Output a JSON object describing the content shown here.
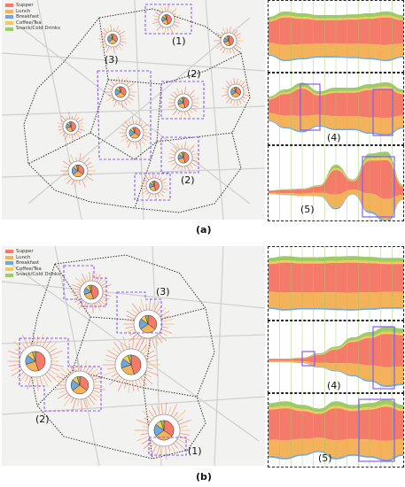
{
  "legend": {
    "items": [
      {
        "label": "Supper",
        "color": "#f47a6a"
      },
      {
        "label": "Lunch",
        "color": "#f4b25a"
      },
      {
        "label": "Breakfast",
        "color": "#6fa8dc"
      },
      {
        "label": "Coffee/Tea",
        "color": "#f6c95a"
      },
      {
        "label": "Snack/Cold Drinks",
        "color": "#9ccc65"
      }
    ]
  },
  "figure_a": {
    "caption": "(a)",
    "map_labels": [
      "(1)",
      "(2)",
      "(3)",
      "(2)"
    ],
    "stream_labels": [
      "(4)",
      "(5)"
    ]
  },
  "figure_b": {
    "caption": "(b)",
    "map_labels": [
      "(3)",
      "(2)",
      "(1)"
    ],
    "stream_labels": [
      "(4)",
      "(5)"
    ]
  },
  "colors": {
    "highlight": "#8a5cf0",
    "supper": "#f47a6a",
    "lunch": "#f4b25a",
    "breakfast": "#6fa8dc",
    "coffee": "#f6c95a",
    "snack": "#9ccc65"
  }
}
